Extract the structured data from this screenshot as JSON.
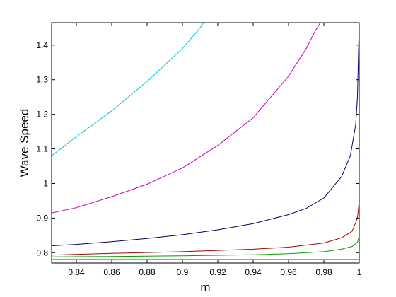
{
  "chart_data": {
    "type": "line",
    "title": "",
    "xlabel": "m",
    "ylabel": "Wave Speed",
    "xlim": [
      0.826,
      1.0
    ],
    "ylim": [
      0.77,
      1.465
    ],
    "xticks": [
      0.84,
      0.86,
      0.88,
      0.9,
      0.92,
      0.94,
      0.96,
      0.98,
      1
    ],
    "xtick_labels": [
      "0.84",
      "0.86",
      "0.88",
      "0.9",
      "0.92",
      "0.94",
      "0.96",
      "0.98",
      "1"
    ],
    "yticks": [
      0.8,
      0.9,
      1,
      1.1,
      1.2,
      1.3,
      1.4
    ],
    "ytick_labels": [
      "0.8",
      "0.9",
      "1",
      "1.1",
      "1.2",
      "1.3",
      "1.4"
    ],
    "grid": false,
    "series": [
      {
        "color": "#00c8d2",
        "x": [
          0.826,
          0.84,
          0.86,
          0.88,
          0.9,
          0.91,
          0.912
        ],
        "y": [
          1.08,
          1.135,
          1.21,
          1.295,
          1.39,
          1.45,
          1.465
        ]
      },
      {
        "color": "#c400c4",
        "x": [
          0.826,
          0.84,
          0.86,
          0.88,
          0.9,
          0.92,
          0.94,
          0.96,
          0.97,
          0.975,
          0.978
        ],
        "y": [
          0.915,
          0.93,
          0.962,
          0.998,
          1.045,
          1.11,
          1.19,
          1.31,
          1.39,
          1.44,
          1.465
        ]
      },
      {
        "color": "#00006e",
        "x": [
          0.826,
          0.84,
          0.86,
          0.88,
          0.9,
          0.92,
          0.94,
          0.96,
          0.97,
          0.98,
          0.99,
          0.995,
          0.998,
          0.999,
          1.0
        ],
        "y": [
          0.82,
          0.824,
          0.832,
          0.841,
          0.852,
          0.866,
          0.884,
          0.91,
          0.928,
          0.958,
          1.02,
          1.08,
          1.17,
          1.25,
          1.465
        ]
      },
      {
        "color": "#aa0000",
        "x": [
          0.826,
          0.86,
          0.9,
          0.94,
          0.96,
          0.98,
          0.99,
          0.996,
          0.999,
          1.0
        ],
        "y": [
          0.793,
          0.798,
          0.803,
          0.81,
          0.816,
          0.828,
          0.843,
          0.862,
          0.9,
          0.95
        ]
      },
      {
        "color": "#00a000",
        "x": [
          0.826,
          0.86,
          0.9,
          0.94,
          0.96,
          0.98,
          0.99,
          0.996,
          0.999,
          1.0
        ],
        "y": [
          0.788,
          0.789,
          0.791,
          0.794,
          0.797,
          0.803,
          0.81,
          0.818,
          0.83,
          0.848
        ]
      },
      {
        "color": "#000000",
        "x": [
          0.826,
          0.9,
          1.0
        ],
        "y": [
          0.78,
          0.78,
          0.78
        ]
      }
    ]
  }
}
